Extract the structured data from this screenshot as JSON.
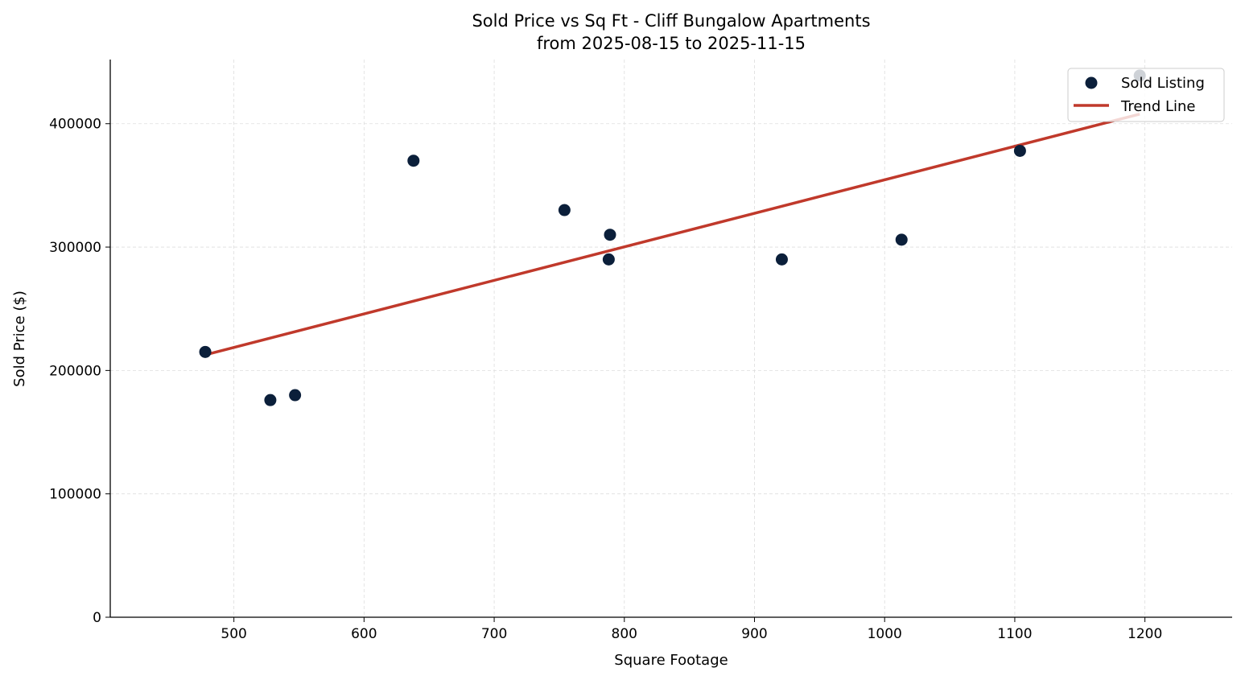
{
  "chart_data": {
    "type": "scatter",
    "title": "Sold Price vs Sq Ft - Cliff Bungalow Apartments",
    "subtitle": "from 2025-08-15 to 2025-11-15",
    "xlabel": "Square Footage",
    "ylabel": "Sold Price ($)",
    "xlim": [
      405,
      1267
    ],
    "ylim": [
      0,
      452000
    ],
    "xticks": [
      500,
      600,
      700,
      800,
      900,
      1000,
      1100,
      1200
    ],
    "yticks": [
      0,
      100000,
      200000,
      300000,
      400000
    ],
    "grid": true,
    "legend_position": "top-right",
    "series": [
      {
        "name": "Sold Listing",
        "type": "scatter",
        "color": "#0b1f3a",
        "points": [
          {
            "x": 478,
            "y": 215000
          },
          {
            "x": 528,
            "y": 176000
          },
          {
            "x": 547,
            "y": 180000
          },
          {
            "x": 638,
            "y": 370000
          },
          {
            "x": 754,
            "y": 330000
          },
          {
            "x": 788,
            "y": 290000
          },
          {
            "x": 789,
            "y": 310000
          },
          {
            "x": 921,
            "y": 290000
          },
          {
            "x": 1013,
            "y": 306000
          },
          {
            "x": 1104,
            "y": 378000
          },
          {
            "x": 1196,
            "y": 439000
          }
        ]
      },
      {
        "name": "Trend Line",
        "type": "line",
        "color": "#c0392b",
        "points": [
          {
            "x": 478,
            "y": 212700
          },
          {
            "x": 1196,
            "y": 407800
          }
        ]
      }
    ]
  }
}
